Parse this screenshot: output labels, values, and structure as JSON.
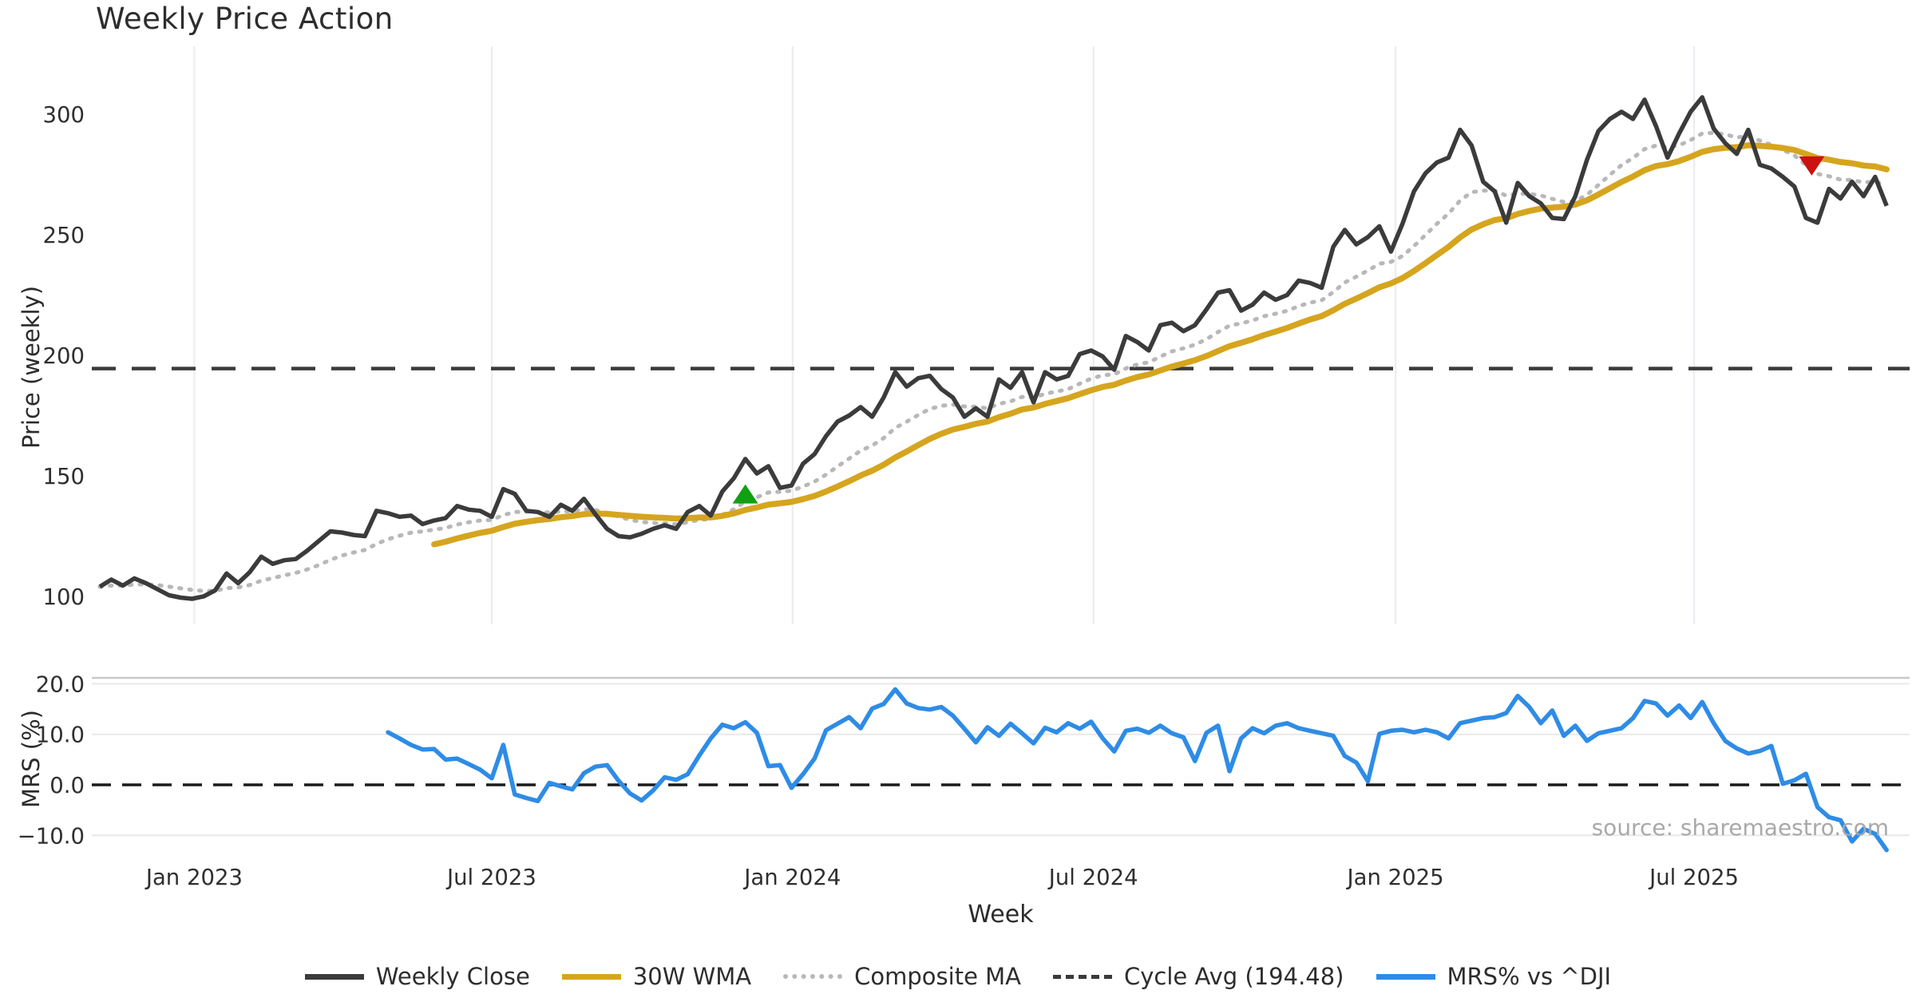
{
  "title": "Weekly Price Action",
  "xlabel": "Week",
  "source": "source: sharemaestro.com",
  "colors": {
    "weekly_close": "#3b3b3b",
    "wma": "#d6a51e",
    "composite": "#b8b8b8",
    "cycle": "#3a3a3a",
    "mrs": "#2e8ce6",
    "buy_marker": "#11a011",
    "sell_marker": "#cc1111",
    "grid": "#ececf2",
    "grid_h": "#e9e9e9",
    "spine": "#c9c9c9",
    "tick_text": "#2f2f2f",
    "zero_line": "#1a1a1a"
  },
  "legend": [
    {
      "label": "Weekly Close",
      "style": "solid",
      "color": "#3b3b3b"
    },
    {
      "label": "30W WMA",
      "style": "solid",
      "color": "#d6a51e"
    },
    {
      "label": "Composite MA",
      "style": "dotted",
      "color": "#b8b8b8"
    },
    {
      "label": "Cycle Avg (194.48)",
      "style": "dashed",
      "color": "#3a3a3a"
    },
    {
      "label": "MRS% vs ^DJI",
      "style": "solid",
      "color": "#2e8ce6"
    }
  ],
  "chart_data": [
    {
      "type": "line",
      "panel": "price",
      "title": "Weekly Price Action",
      "ylabel": "Price (weekly)",
      "ylim": [
        88,
        330
      ],
      "yticks": [
        {
          "v": 300,
          "label": "300"
        },
        {
          "v": 250,
          "label": "250"
        },
        {
          "v": 200,
          "label": "200"
        },
        {
          "v": 150,
          "label": "150"
        },
        {
          "v": 100,
          "label": "100"
        }
      ],
      "cycle_avg": {
        "value": 194.48,
        "label": "Cycle Avg (194.48)"
      },
      "series": [
        {
          "name": "Weekly Close",
          "start_week": 0,
          "values": [
            104,
            107,
            104.5,
            107.5,
            105.5,
            103,
            100.5,
            99.5,
            99,
            100,
            102.5,
            109.5,
            105.5,
            110,
            116.5,
            113.5,
            115,
            115.5,
            119,
            123,
            127,
            126.5,
            125.5,
            125,
            135.5,
            134.5,
            133,
            133.5,
            130,
            131.5,
            132.5,
            137.5,
            136,
            135.5,
            133,
            144.5,
            142.5,
            135.5,
            135,
            133,
            138,
            135.5,
            140.5,
            134,
            128,
            125,
            124.5,
            126,
            128,
            129.5,
            128,
            135,
            137.5,
            133.5,
            143.5,
            149,
            157,
            151,
            154,
            145,
            146,
            155,
            159,
            166.5,
            172.5,
            175,
            178.5,
            174.5,
            182.5,
            193,
            187,
            190.5,
            191.5,
            186,
            182.5,
            174.5,
            178,
            174.5,
            190,
            186.5,
            193,
            180.5,
            193,
            190,
            191.5,
            200.5,
            202,
            199.5,
            194,
            208,
            205.5,
            202,
            212.5,
            213.5,
            210,
            212.5,
            219,
            226,
            227,
            218.5,
            221,
            226,
            223,
            225,
            231,
            230,
            228,
            245,
            252,
            246,
            249,
            253.5,
            243,
            254.5,
            268,
            275.5,
            280,
            282,
            293.5,
            287,
            272,
            268,
            255,
            271.5,
            266,
            263,
            257,
            256.5,
            266,
            281,
            293,
            298,
            301,
            298,
            306,
            295,
            282,
            292,
            301,
            307,
            294,
            288,
            283.5,
            293.5,
            279,
            277.5,
            274,
            270,
            257,
            255,
            269,
            265,
            272,
            266,
            274,
            262
          ]
        },
        {
          "name": "30W WMA",
          "derived": "weighted_ma_of_weekly_close",
          "window": 30
        },
        {
          "name": "Composite MA",
          "derived": "ema_of_weekly_close",
          "span": 12
        }
      ],
      "markers": [
        {
          "type": "buy",
          "shape": "triangle-up",
          "week": 56,
          "value": 142.5,
          "color": "#11a011"
        },
        {
          "type": "sell",
          "shape": "triangle-down",
          "week": 148.5,
          "value": 278.5,
          "color": "#cc1111"
        }
      ]
    },
    {
      "type": "line",
      "panel": "mrs",
      "ylabel": "MRS (%)",
      "ylim": [
        -13,
        21.2
      ],
      "yticks": [
        {
          "v": 20,
          "label": "20.0"
        },
        {
          "v": 10,
          "label": "10.0"
        },
        {
          "v": 0,
          "label": "0.0"
        },
        {
          "v": -10,
          "label": "−10.0"
        }
      ],
      "zero_line": 0.0,
      "series": [
        {
          "name": "MRS% vs ^DJI",
          "start_week": 25,
          "values": [
            10.4,
            9.2,
            7.9,
            7.0,
            7.1,
            5.0,
            5.2,
            4.1,
            3.0,
            1.3,
            7.9,
            -1.9,
            -2.6,
            -3.2,
            0.4,
            -0.3,
            -0.9,
            2.3,
            3.6,
            3.9,
            0.8,
            -1.7,
            -3.1,
            -1.1,
            1.5,
            1.0,
            2.1,
            5.8,
            9.2,
            11.9,
            11.2,
            12.4,
            10.3,
            3.7,
            3.9,
            -0.6,
            2.1,
            5.2,
            10.8,
            12.1,
            13.4,
            11.2,
            15.1,
            16.0,
            18.9,
            16.1,
            15.2,
            14.9,
            15.4,
            13.7,
            11.1,
            8.4,
            11.4,
            9.7,
            12.1,
            10.2,
            8.2,
            11.3,
            10.4,
            12.2,
            11.1,
            12.5,
            9.2,
            6.6,
            10.7,
            11.1,
            10.3,
            11.7,
            10.2,
            9.4,
            4.7,
            10.3,
            11.7,
            2.7,
            9.2,
            11.2,
            10.2,
            11.7,
            12.2,
            11.2,
            10.7,
            10.2,
            9.7,
            5.7,
            4.4,
            0.7,
            10.1,
            10.7,
            10.9,
            10.4,
            10.9,
            10.4,
            9.2,
            12.2,
            12.7,
            13.2,
            13.4,
            14.2,
            17.6,
            15.4,
            12.2,
            14.7,
            9.7,
            11.7,
            8.7,
            10.2,
            10.7,
            11.2,
            13.2,
            16.6,
            16.1,
            13.7,
            15.7,
            13.2,
            16.4,
            12.2,
            8.7,
            7.2,
            6.2,
            6.7,
            7.7,
            0.2,
            0.9,
            2.2,
            -4.4,
            -6.4,
            -7.0,
            -11.2,
            -8.7,
            -9.7,
            -12.9
          ]
        }
      ]
    }
  ],
  "x_axis": {
    "label": "Week",
    "ticks": [
      {
        "week": 8.2,
        "label": "Jan 2023"
      },
      {
        "week": 34.0,
        "label": "Jul 2023"
      },
      {
        "week": 60.1,
        "label": "Jan 2024"
      },
      {
        "week": 86.2,
        "label": "Jul 2024"
      },
      {
        "week": 112.4,
        "label": "Jan 2025"
      },
      {
        "week": 138.3,
        "label": "Jul 2025"
      }
    ]
  }
}
